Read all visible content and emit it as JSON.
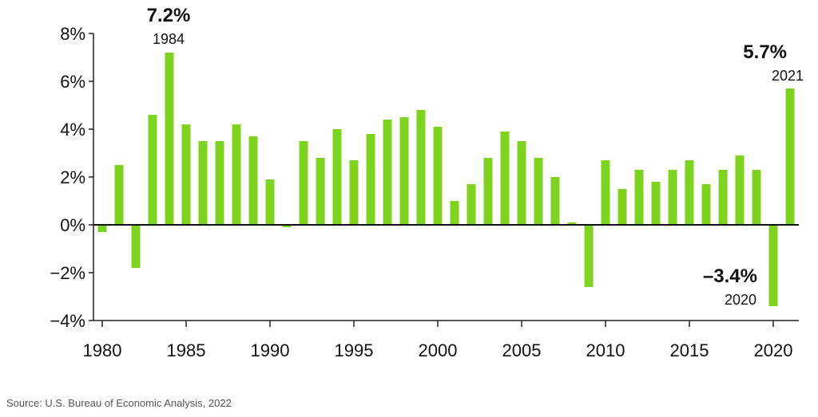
{
  "chart_data": {
    "type": "bar",
    "x": [
      1980,
      1981,
      1982,
      1983,
      1984,
      1985,
      1986,
      1987,
      1988,
      1989,
      1990,
      1991,
      1992,
      1993,
      1994,
      1995,
      1996,
      1997,
      1998,
      1999,
      2000,
      2001,
      2002,
      2003,
      2004,
      2005,
      2006,
      2007,
      2008,
      2009,
      2010,
      2011,
      2012,
      2013,
      2014,
      2015,
      2016,
      2017,
      2018,
      2019,
      2020,
      2021
    ],
    "values": [
      -0.3,
      2.5,
      -1.8,
      4.6,
      7.2,
      4.2,
      3.5,
      3.5,
      4.2,
      3.7,
      1.9,
      -0.1,
      3.5,
      2.8,
      4.0,
      2.7,
      3.8,
      4.4,
      4.5,
      4.8,
      4.1,
      1.0,
      1.7,
      2.8,
      3.9,
      3.5,
      2.8,
      2.0,
      0.1,
      -2.6,
      2.7,
      1.5,
      2.3,
      1.8,
      2.3,
      2.7,
      1.7,
      2.3,
      2.9,
      2.3,
      -3.4,
      5.7
    ],
    "ylim": [
      -4,
      8
    ],
    "y_ticks": [
      "−4%",
      "−2%",
      "0%",
      "2%",
      "4%",
      "6%",
      "8%"
    ],
    "x_ticks": [
      "1980",
      "1985",
      "1990",
      "1995",
      "2000",
      "2005",
      "2010",
      "2015",
      "2020"
    ],
    "annotations": [
      {
        "value": "7.2%",
        "year": "1984"
      },
      {
        "value": "5.7%",
        "year": "2021"
      },
      {
        "value": "–3.4%",
        "year": "2020"
      }
    ],
    "bar_color": "#7ed321",
    "grid": false
  },
  "source": "Source: U.S. Bureau of Economic Analysis, 2022"
}
